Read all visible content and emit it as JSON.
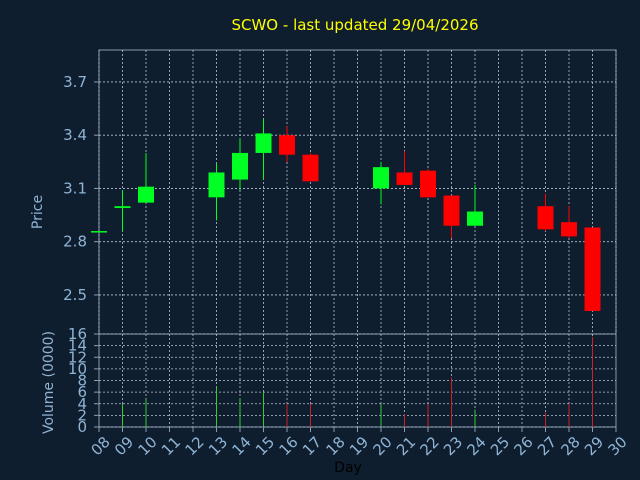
{
  "title": "SCWO - last updated 29/04/2026",
  "colors": {
    "background": "#0f1e2f",
    "plot_frame": "#8a9bb0",
    "grid": "#b8c4d2",
    "axis_text": "#8fb4d4",
    "title": "#ffff00",
    "xlabel": "#000000",
    "up": "#00ff22",
    "down": "#ff0000",
    "volume_up": "#33cc33",
    "volume_down": "#cc2222"
  },
  "chart_data": [
    {
      "type": "candlestick",
      "ylabel": "Price",
      "ylim": [
        2.28,
        3.88
      ],
      "yticks": [
        2.5,
        2.8,
        3.1,
        3.4,
        3.7
      ],
      "ytick_labels": [
        "2.5",
        "2.8",
        "3.1",
        "3.4",
        "3.7"
      ],
      "grid": true,
      "candles": [
        {
          "day": "08",
          "open": 2.86,
          "high": 2.86,
          "low": 2.86,
          "close": 2.86
        },
        {
          "day": "09",
          "open": 2.99,
          "high": 3.09,
          "low": 2.86,
          "close": 3.0
        },
        {
          "day": "10",
          "open": 3.02,
          "high": 3.3,
          "low": 3.02,
          "close": 3.11
        },
        {
          "day": "13",
          "open": 3.05,
          "high": 3.24,
          "low": 2.92,
          "close": 3.19
        },
        {
          "day": "14",
          "open": 3.15,
          "high": 3.38,
          "low": 3.09,
          "close": 3.3
        },
        {
          "day": "15",
          "open": 3.3,
          "high": 3.49,
          "low": 3.15,
          "close": 3.41
        },
        {
          "day": "16",
          "open": 3.4,
          "high": 3.45,
          "low": 3.25,
          "close": 3.29
        },
        {
          "day": "17",
          "open": 3.29,
          "high": 3.3,
          "low": 3.14,
          "close": 3.14
        },
        {
          "day": "20",
          "open": 3.1,
          "high": 3.25,
          "low": 3.01,
          "close": 3.22
        },
        {
          "day": "21",
          "open": 3.19,
          "high": 3.31,
          "low": 3.12,
          "close": 3.12
        },
        {
          "day": "22",
          "open": 3.2,
          "high": 3.21,
          "low": 3.05,
          "close": 3.05
        },
        {
          "day": "23",
          "open": 3.06,
          "high": 3.06,
          "low": 2.82,
          "close": 2.89
        },
        {
          "day": "24",
          "open": 2.89,
          "high": 3.12,
          "low": 2.89,
          "close": 2.97
        },
        {
          "day": "27",
          "open": 3.0,
          "high": 3.07,
          "low": 2.86,
          "close": 2.87
        },
        {
          "day": "28",
          "open": 2.91,
          "high": 3.0,
          "low": 2.82,
          "close": 2.83
        },
        {
          "day": "29",
          "open": 2.88,
          "high": 2.88,
          "low": 2.41,
          "close": 2.41
        }
      ]
    },
    {
      "type": "bar",
      "ylabel": "Volume (0000)",
      "xlabel": "Day",
      "ylim": [
        0,
        16
      ],
      "yticks": [
        0,
        2,
        4,
        6,
        8,
        10,
        12,
        14,
        16
      ],
      "ytick_labels": [
        "0",
        "2",
        "4",
        "6",
        "8",
        "10",
        "12",
        "14",
        "16"
      ],
      "categories": [
        "08",
        "09",
        "10",
        "11",
        "12",
        "13",
        "14",
        "15",
        "16",
        "17",
        "18",
        "19",
        "20",
        "21",
        "22",
        "23",
        "24",
        "25",
        "26",
        "27",
        "28",
        "29",
        "30"
      ],
      "values": [
        0,
        4,
        4.8,
        0,
        0,
        7,
        5,
        6,
        4,
        4,
        0,
        0,
        4,
        2.2,
        4,
        8.5,
        3,
        0,
        0,
        2.5,
        4,
        15.5,
        0
      ],
      "directions": [
        "",
        "up",
        "up",
        "",
        "",
        "up",
        "up",
        "up",
        "down",
        "down",
        "",
        "",
        "up",
        "down",
        "down",
        "down",
        "up",
        "",
        "",
        "down",
        "down",
        "down",
        ""
      ],
      "grid": true
    }
  ]
}
